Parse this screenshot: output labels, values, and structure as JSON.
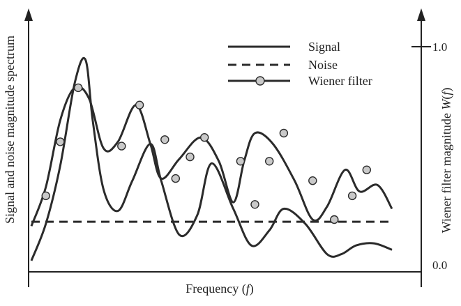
{
  "chart_data": {
    "type": "line",
    "xlabel_parts": [
      "Frequency (",
      "f",
      ")"
    ],
    "ylabel_left": "Signal and noise magnitude spectrum",
    "ylabel_right_parts": [
      "Wiener filter magnitude ",
      "W",
      "(",
      "f",
      ")"
    ],
    "right_axis_ticks": [
      {
        "value": 1.0,
        "label": "1.0"
      },
      {
        "value": 0.0,
        "label": "0.0"
      }
    ],
    "ylim_right": [
      0.0,
      1.0
    ],
    "legend": [
      {
        "name": "Signal",
        "style": "solid"
      },
      {
        "name": "Noise",
        "style": "dashed"
      },
      {
        "name": "Wiener filter",
        "style": "solid-markers"
      }
    ],
    "series": [
      {
        "name": "Signal",
        "color": "#2b2b2b",
        "points": [
          [
            0.0,
            0.01
          ],
          [
            0.04,
            0.18
          ],
          [
            0.08,
            0.45
          ],
          [
            0.12,
            0.83
          ],
          [
            0.15,
            0.94
          ],
          [
            0.17,
            0.66
          ],
          [
            0.2,
            0.34
          ],
          [
            0.24,
            0.24
          ],
          [
            0.28,
            0.38
          ],
          [
            0.33,
            0.55
          ],
          [
            0.36,
            0.38
          ],
          [
            0.41,
            0.13
          ],
          [
            0.46,
            0.22
          ],
          [
            0.5,
            0.46
          ],
          [
            0.56,
            0.25
          ],
          [
            0.61,
            0.08
          ],
          [
            0.66,
            0.15
          ],
          [
            0.7,
            0.25
          ],
          [
            0.76,
            0.18
          ],
          [
            0.82,
            0.04
          ],
          [
            0.86,
            0.04
          ],
          [
            0.9,
            0.08
          ],
          [
            0.95,
            0.09
          ],
          [
            1.0,
            0.06
          ]
        ]
      },
      {
        "name": "Noise",
        "color": "#2b2b2b",
        "points": [
          [
            0.0,
            0.19
          ],
          [
            1.0,
            0.19
          ]
        ]
      },
      {
        "name": "Wiener filter",
        "color": "#2b2b2b",
        "marker_color": "#c9c9c9",
        "points": [
          [
            0.0,
            0.17
          ],
          [
            0.04,
            0.35
          ],
          [
            0.08,
            0.66
          ],
          [
            0.12,
            0.81
          ],
          [
            0.16,
            0.76
          ],
          [
            0.2,
            0.53
          ],
          [
            0.24,
            0.56
          ],
          [
            0.29,
            0.73
          ],
          [
            0.33,
            0.55
          ],
          [
            0.36,
            0.39
          ],
          [
            0.41,
            0.48
          ],
          [
            0.47,
            0.58
          ],
          [
            0.52,
            0.47
          ],
          [
            0.56,
            0.28
          ],
          [
            0.59,
            0.47
          ],
          [
            0.62,
            0.6
          ],
          [
            0.67,
            0.55
          ],
          [
            0.73,
            0.38
          ],
          [
            0.78,
            0.2
          ],
          [
            0.82,
            0.26
          ],
          [
            0.87,
            0.43
          ],
          [
            0.91,
            0.33
          ],
          [
            0.96,
            0.36
          ],
          [
            1.0,
            0.25
          ]
        ],
        "markers": [
          [
            0.04,
            0.31
          ],
          [
            0.08,
            0.56
          ],
          [
            0.13,
            0.81
          ],
          [
            0.25,
            0.54
          ],
          [
            0.3,
            0.73
          ],
          [
            0.37,
            0.57
          ],
          [
            0.4,
            0.39
          ],
          [
            0.44,
            0.49
          ],
          [
            0.48,
            0.58
          ],
          [
            0.58,
            0.47
          ],
          [
            0.62,
            0.27
          ],
          [
            0.66,
            0.47
          ],
          [
            0.7,
            0.6
          ],
          [
            0.78,
            0.38
          ],
          [
            0.84,
            0.2
          ],
          [
            0.89,
            0.31
          ],
          [
            0.93,
            0.43
          ]
        ]
      }
    ]
  }
}
